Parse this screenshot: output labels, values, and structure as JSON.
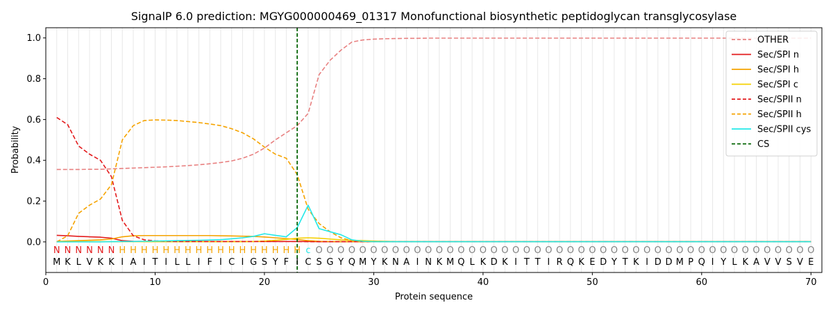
{
  "chart_data": {
    "type": "line",
    "title": "SignalP 6.0 prediction: MGYG000000469_01317 Monofunctional biosynthetic peptidoglycan transglycosylase",
    "xlabel": "Protein sequence",
    "ylabel": "Probability",
    "xlim": [
      0,
      71
    ],
    "ylim": [
      -0.15,
      1.05
    ],
    "xticks": [
      0,
      10,
      20,
      30,
      40,
      50,
      60,
      70
    ],
    "yticks": [
      0.0,
      0.2,
      0.4,
      0.6,
      0.8,
      1.0
    ],
    "xtick_labels": [
      "0",
      "10",
      "20",
      "30",
      "40",
      "50",
      "60",
      "70"
    ],
    "ytick_labels": [
      "0.0",
      "0.2",
      "0.4",
      "0.6",
      "0.8",
      "1.0"
    ],
    "grid": "vertical lines at each residue",
    "legend_position": "top-right",
    "cleavage_site": 23,
    "sequence": [
      "M",
      "K",
      "L",
      "V",
      "K",
      "K",
      "I",
      "A",
      "I",
      "T",
      "I",
      "L",
      "L",
      "I",
      "F",
      "I",
      "C",
      "I",
      "G",
      "S",
      "Y",
      "F",
      "I",
      "C",
      "S",
      "G",
      "Y",
      "Q",
      "M",
      "Y",
      "K",
      "N",
      "A",
      "I",
      "N",
      "K",
      "M",
      "Q",
      "L",
      "K",
      "D",
      "K",
      "I",
      "T",
      "T",
      "I",
      "R",
      "Q",
      "K",
      "E",
      "D",
      "Y",
      "T",
      "K",
      "I",
      "D",
      "D",
      "M",
      "P",
      "Q",
      "I",
      "Y",
      "L",
      "K",
      "A",
      "V",
      "V",
      "S",
      "V",
      "E"
    ],
    "region_labels": [
      "N",
      "N",
      "N",
      "N",
      "N",
      "N",
      "H",
      "H",
      "H",
      "H",
      "H",
      "H",
      "H",
      "H",
      "H",
      "H",
      "H",
      "H",
      "H",
      "H",
      "H",
      "H",
      "H",
      "C",
      "O",
      "O",
      "O",
      "O",
      "O",
      "O",
      "O",
      "O",
      "O",
      "O",
      "O",
      "O",
      "O",
      "O",
      "O",
      "O",
      "O",
      "O",
      "O",
      "O",
      "O",
      "O",
      "O",
      "O",
      "O",
      "O",
      "O",
      "O",
      "O",
      "O",
      "O",
      "O",
      "O",
      "O",
      "O",
      "O",
      "O",
      "O",
      "O",
      "O",
      "O",
      "O",
      "O",
      "O",
      "O",
      "O"
    ],
    "x": [
      1,
      2,
      3,
      4,
      5,
      6,
      7,
      8,
      9,
      10,
      11,
      12,
      13,
      14,
      15,
      16,
      17,
      18,
      19,
      20,
      21,
      22,
      23,
      24,
      25,
      26,
      27,
      28,
      29,
      30,
      31,
      32,
      33,
      34,
      35,
      36,
      37,
      38,
      39,
      40,
      41,
      42,
      43,
      44,
      45,
      46,
      47,
      48,
      49,
      50,
      51,
      52,
      53,
      54,
      55,
      56,
      57,
      58,
      59,
      60,
      61,
      62,
      63,
      64,
      65,
      66,
      67,
      68,
      69,
      70
    ],
    "series": [
      {
        "name": "OTHER",
        "color": "#e88080",
        "dash": "dashed",
        "values": [
          0.355,
          0.355,
          0.355,
          0.356,
          0.356,
          0.358,
          0.36,
          0.362,
          0.364,
          0.366,
          0.368,
          0.371,
          0.374,
          0.378,
          0.383,
          0.389,
          0.397,
          0.41,
          0.43,
          0.46,
          0.5,
          0.535,
          0.57,
          0.63,
          0.82,
          0.89,
          0.94,
          0.98,
          0.99,
          0.994,
          0.996,
          0.997,
          0.998,
          0.998,
          0.999,
          0.999,
          0.999,
          0.999,
          0.999,
          0.999,
          0.999,
          0.999,
          0.999,
          0.999,
          0.999,
          0.999,
          0.999,
          0.999,
          0.999,
          0.999,
          0.999,
          0.999,
          0.999,
          0.999,
          0.999,
          0.999,
          0.999,
          0.999,
          0.999,
          0.999,
          0.999,
          0.999,
          0.999,
          0.999,
          0.999,
          0.999,
          0.999,
          0.999,
          0.999,
          0.999
        ]
      },
      {
        "name": "Sec/SPI n",
        "color": "#e31a1c",
        "dash": "solid",
        "values": [
          0.032,
          0.03,
          0.027,
          0.025,
          0.023,
          0.018,
          0.006,
          0.003,
          0.002,
          0.002,
          0.002,
          0.002,
          0.002,
          0.002,
          0.002,
          0.002,
          0.002,
          0.002,
          0.002,
          0.002,
          0.002,
          0.002,
          0.002,
          0.002,
          0.001,
          0.001,
          0.001,
          0.001,
          0.001,
          0.001,
          0.001,
          0.001,
          0.001,
          0.001,
          0.001,
          0.001,
          0.001,
          0.001,
          0.001,
          0.001,
          0.001,
          0.001,
          0.001,
          0.001,
          0.001,
          0.001,
          0.001,
          0.001,
          0.001,
          0.001,
          0.001,
          0.001,
          0.001,
          0.001,
          0.001,
          0.001,
          0.001,
          0.001,
          0.001,
          0.001,
          0.001,
          0.001,
          0.001,
          0.001,
          0.001,
          0.001,
          0.001,
          0.001,
          0.001,
          0.001
        ]
      },
      {
        "name": "Sec/SPI h",
        "color": "#f5a300",
        "dash": "solid",
        "values": [
          0.002,
          0.004,
          0.006,
          0.008,
          0.01,
          0.014,
          0.025,
          0.03,
          0.031,
          0.031,
          0.031,
          0.031,
          0.031,
          0.031,
          0.031,
          0.03,
          0.029,
          0.028,
          0.027,
          0.024,
          0.02,
          0.016,
          0.012,
          0.006,
          0.003,
          0.002,
          0.001,
          0.001,
          0.001,
          0.001,
          0.001,
          0.001,
          0.001,
          0.001,
          0.001,
          0.001,
          0.001,
          0.001,
          0.001,
          0.001,
          0.001,
          0.001,
          0.001,
          0.001,
          0.001,
          0.001,
          0.001,
          0.001,
          0.001,
          0.001,
          0.001,
          0.001,
          0.001,
          0.001,
          0.001,
          0.001,
          0.001,
          0.001,
          0.001,
          0.001,
          0.001,
          0.001,
          0.001,
          0.001,
          0.001,
          0.001,
          0.001,
          0.001,
          0.001,
          0.001
        ]
      },
      {
        "name": "Sec/SPI c",
        "color": "#f5d000",
        "dash": "solid",
        "values": [
          0.001,
          0.001,
          0.001,
          0.001,
          0.001,
          0.001,
          0.001,
          0.001,
          0.001,
          0.001,
          0.001,
          0.001,
          0.001,
          0.001,
          0.001,
          0.001,
          0.001,
          0.001,
          0.002,
          0.004,
          0.008,
          0.012,
          0.018,
          0.02,
          0.018,
          0.014,
          0.01,
          0.008,
          0.006,
          0.004,
          0.003,
          0.002,
          0.002,
          0.001,
          0.001,
          0.001,
          0.001,
          0.001,
          0.001,
          0.001,
          0.001,
          0.001,
          0.001,
          0.001,
          0.001,
          0.001,
          0.001,
          0.001,
          0.001,
          0.001,
          0.001,
          0.001,
          0.001,
          0.001,
          0.001,
          0.001,
          0.001,
          0.001,
          0.001,
          0.001,
          0.001,
          0.001,
          0.001,
          0.001,
          0.001,
          0.001,
          0.001,
          0.001,
          0.001,
          0.001
        ]
      },
      {
        "name": "Sec/SPII n",
        "color": "#e31a1c",
        "dash": "dashed",
        "values": [
          0.61,
          0.575,
          0.47,
          0.43,
          0.4,
          0.32,
          0.105,
          0.03,
          0.01,
          0.005,
          0.003,
          0.002,
          0.002,
          0.002,
          0.002,
          0.002,
          0.002,
          0.002,
          0.002,
          0.002,
          0.002,
          0.002,
          0.002,
          0.001,
          0.001,
          0.001,
          0.001,
          0.001,
          0.001,
          0.001,
          0.001,
          0.001,
          0.001,
          0.001,
          0.001,
          0.001,
          0.001,
          0.001,
          0.001,
          0.001,
          0.001,
          0.001,
          0.001,
          0.001,
          0.001,
          0.001,
          0.001,
          0.001,
          0.001,
          0.001,
          0.001,
          0.001,
          0.001,
          0.001,
          0.001,
          0.001,
          0.001,
          0.001,
          0.001,
          0.001,
          0.001,
          0.001,
          0.001,
          0.001,
          0.001,
          0.001,
          0.001,
          0.001,
          0.001,
          0.001
        ]
      },
      {
        "name": "Sec/SPII h",
        "color": "#f5a300",
        "dash": "dashed",
        "values": [
          0.0,
          0.03,
          0.14,
          0.18,
          0.21,
          0.28,
          0.5,
          0.57,
          0.595,
          0.598,
          0.597,
          0.595,
          0.59,
          0.585,
          0.578,
          0.57,
          0.555,
          0.535,
          0.505,
          0.465,
          0.43,
          0.41,
          0.33,
          0.16,
          0.09,
          0.05,
          0.02,
          0.006,
          0.002,
          0.001,
          0.001,
          0.001,
          0.001,
          0.001,
          0.001,
          0.001,
          0.001,
          0.001,
          0.001,
          0.001,
          0.001,
          0.001,
          0.001,
          0.001,
          0.001,
          0.001,
          0.001,
          0.001,
          0.001,
          0.001,
          0.001,
          0.001,
          0.001,
          0.001,
          0.001,
          0.001,
          0.001,
          0.001,
          0.001,
          0.001,
          0.001,
          0.001,
          0.001,
          0.001,
          0.001,
          0.001,
          0.001,
          0.001,
          0.001,
          0.001
        ]
      },
      {
        "name": "Sec/SPII cys",
        "color": "#22e8e8",
        "dash": "solid",
        "values": [
          0.0,
          0.0,
          0.0,
          0.0,
          0.0,
          0.001,
          0.002,
          0.002,
          0.003,
          0.004,
          0.005,
          0.006,
          0.007,
          0.008,
          0.009,
          0.011,
          0.015,
          0.02,
          0.027,
          0.04,
          0.032,
          0.025,
          0.07,
          0.18,
          0.065,
          0.05,
          0.035,
          0.01,
          0.003,
          0.001,
          0.001,
          0.001,
          0.001,
          0.001,
          0.001,
          0.001,
          0.001,
          0.001,
          0.001,
          0.001,
          0.001,
          0.001,
          0.001,
          0.001,
          0.001,
          0.001,
          0.001,
          0.001,
          0.001,
          0.001,
          0.001,
          0.001,
          0.001,
          0.001,
          0.001,
          0.001,
          0.001,
          0.001,
          0.001,
          0.001,
          0.001,
          0.001,
          0.001,
          0.001,
          0.001,
          0.001,
          0.001,
          0.001,
          0.001,
          0.001
        ]
      }
    ],
    "legend": [
      {
        "label": "OTHER",
        "color": "#e88080",
        "dash": "dashed"
      },
      {
        "label": "Sec/SPI n",
        "color": "#e31a1c",
        "dash": "solid"
      },
      {
        "label": "Sec/SPI h",
        "color": "#f5a300",
        "dash": "solid"
      },
      {
        "label": "Sec/SPI c",
        "color": "#f5d000",
        "dash": "solid"
      },
      {
        "label": "Sec/SPII n",
        "color": "#e31a1c",
        "dash": "dashed"
      },
      {
        "label": "Sec/SPII h",
        "color": "#f5a300",
        "dash": "dashed"
      },
      {
        "label": "Sec/SPII cys",
        "color": "#22e8e8",
        "dash": "solid"
      },
      {
        "label": "CS",
        "color": "#006400",
        "dash": "dashed"
      }
    ],
    "region_colors": {
      "N": "#e31a1c",
      "H": "#f5a300",
      "C": "#22e8e8",
      "O": "#808080"
    }
  }
}
